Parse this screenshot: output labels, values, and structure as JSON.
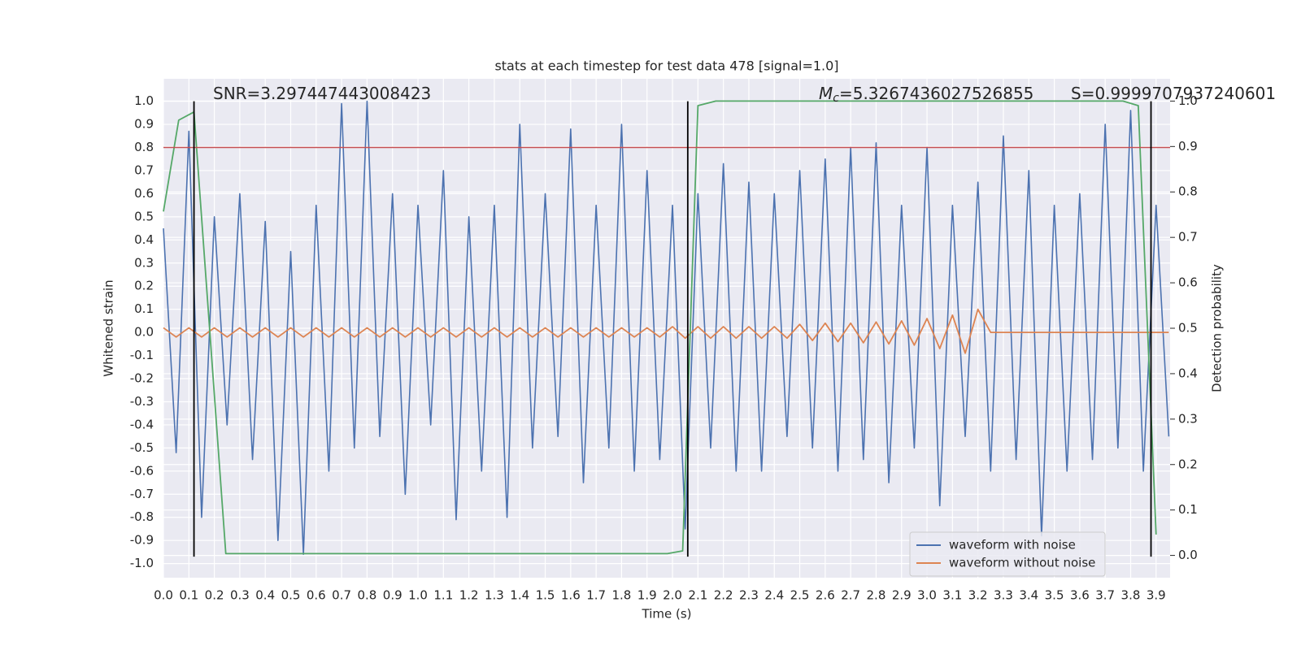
{
  "chart_data": {
    "type": "line",
    "title": "stats at each timestep for test data 478 [signal=1.0]",
    "xlabel": "Time (s)",
    "ylabel": "Whitened strain",
    "y2label": "Detection probability",
    "annotations": [
      {
        "text": "SNR=3.297447443008423"
      },
      {
        "symbol": "M",
        "subscript": "c",
        "text": "=5.3267436027526855"
      },
      {
        "text": "S=0.9999707937240601"
      }
    ],
    "xlim": [
      0,
      3.955
    ],
    "ylim": [
      -1.061,
      1.097
    ],
    "y2lim": [
      -0.049,
      1.049
    ],
    "grid": true,
    "legend": "lower right",
    "xticks": [
      {
        "value": 0,
        "label": "0.0"
      },
      0.1,
      0.2,
      0.3,
      0.4,
      0.5,
      0.6,
      0.7,
      0.8,
      0.9,
      {
        "value": 1,
        "label": "1.0"
      },
      1.1,
      1.2,
      1.3,
      1.4,
      1.5,
      1.6,
      1.7,
      1.8,
      1.9,
      {
        "value": 2,
        "label": "2.0"
      },
      2.1,
      2.2,
      2.3,
      2.4,
      2.5,
      2.6,
      2.7,
      2.8,
      2.9,
      {
        "value": 3,
        "label": "3.0"
      },
      3.1,
      3.2,
      3.3,
      3.4,
      3.5,
      3.6,
      3.7,
      3.8,
      3.9
    ],
    "yticks": [
      {
        "value": 1,
        "label": "1.0"
      },
      0.9,
      0.8,
      0.7,
      0.6,
      0.5,
      0.4,
      0.3,
      0.2,
      0.1,
      {
        "value": 0,
        "label": "0.0"
      },
      -0.1,
      -0.2,
      -0.3,
      -0.4,
      -0.5,
      -0.6,
      -0.7,
      -0.8,
      -0.9,
      {
        "value": -1,
        "label": "-1.0"
      }
    ],
    "y2ticks": [
      {
        "value": 1,
        "label": "1.0"
      },
      0.9,
      0.8,
      0.7,
      0.6,
      0.5,
      0.4,
      0.3,
      0.2,
      0.1,
      {
        "value": 0,
        "label": "0.0"
      }
    ],
    "x": [
      0,
      0.05,
      0.1,
      0.15,
      0.2,
      0.25,
      0.3,
      0.35,
      0.4,
      0.45,
      0.5,
      0.55,
      0.6,
      0.65,
      0.7,
      0.75,
      0.8,
      0.85,
      0.9,
      0.95,
      1,
      1.05,
      1.1,
      1.15,
      1.2,
      1.25,
      1.3,
      1.35,
      1.4,
      1.45,
      1.5,
      1.55,
      1.6,
      1.65,
      1.7,
      1.75,
      1.8,
      1.85,
      1.9,
      1.95,
      2,
      2.05,
      2.1,
      2.15,
      2.2,
      2.25,
      2.3,
      2.35,
      2.4,
      2.45,
      2.5,
      2.55,
      2.6,
      2.65,
      2.7,
      2.75,
      2.8,
      2.85,
      2.9,
      2.95,
      3,
      3.05,
      3.1,
      3.15,
      3.2,
      3.25,
      3.3,
      3.35,
      3.4,
      3.45,
      3.5,
      3.55,
      3.6,
      3.65,
      3.7,
      3.75,
      3.8,
      3.85,
      3.9,
      3.95
    ],
    "series": [
      {
        "name": "waveform with noise",
        "color": "#4c72b0",
        "axis": "y",
        "values": [
          0.45,
          -0.52,
          0.87,
          -0.8,
          0.5,
          -0.4,
          0.6,
          -0.55,
          0.48,
          -0.9,
          0.35,
          -0.96,
          0.55,
          -0.6,
          0.99,
          -0.5,
          1.0,
          -0.45,
          0.6,
          -0.7,
          0.55,
          -0.4,
          0.7,
          -0.81,
          0.5,
          -0.6,
          0.55,
          -0.8,
          0.9,
          -0.5,
          0.6,
          -0.45,
          0.88,
          -0.65,
          0.55,
          -0.5,
          0.9,
          -0.6,
          0.7,
          -0.55,
          0.55,
          -0.85,
          0.6,
          -0.5,
          0.73,
          -0.6,
          0.65,
          -0.6,
          0.6,
          -0.45,
          0.7,
          -0.5,
          0.75,
          -0.6,
          0.8,
          -0.55,
          0.82,
          -0.65,
          0.55,
          -0.5,
          0.8,
          -0.75,
          0.55,
          -0.45,
          0.65,
          -0.6,
          0.85,
          -0.55,
          0.7,
          -0.88,
          0.55,
          -0.6,
          0.6,
          -0.55,
          0.9,
          -0.5,
          0.96,
          -0.6,
          0.55,
          -0.45
        ]
      },
      {
        "name": "waveform without noise",
        "color": "#dd8452",
        "axis": "y",
        "values": [
          0.02,
          -0.02,
          0.02,
          -0.02,
          0.02,
          -0.02,
          0.02,
          -0.02,
          0.02,
          -0.02,
          0.02,
          -0.02,
          0.02,
          -0.02,
          0.02,
          -0.02,
          0.02,
          -0.02,
          0.02,
          -0.02,
          0.02,
          -0.02,
          0.02,
          -0.02,
          0.02,
          -0.02,
          0.02,
          -0.02,
          0.02,
          -0.02,
          0.02,
          -0.02,
          0.02,
          -0.02,
          0.02,
          -0.02,
          0.02,
          -0.02,
          0.02,
          -0.02,
          0.025,
          -0.025,
          0.025,
          -0.025,
          0.025,
          -0.025,
          0.025,
          -0.025,
          0.025,
          -0.025,
          0.035,
          -0.035,
          0.04,
          -0.04,
          0.04,
          -0.045,
          0.045,
          -0.05,
          0.05,
          -0.055,
          0.06,
          -0.07,
          0.075,
          -0.09,
          0.1,
          0,
          0,
          0,
          0,
          0,
          0,
          0,
          0,
          0,
          0,
          0,
          0,
          0,
          0,
          0
        ]
      },
      {
        "color": "#55a868",
        "axis": "y2",
        "x": [
          0,
          0.06,
          0.12,
          0.245,
          1.98,
          2.04,
          2.1,
          2.17,
          3.77,
          3.83,
          3.9
        ],
        "values": [
          0.757,
          0.958,
          0.976,
          0.004,
          0.004,
          0.01,
          0.99,
          1.0,
          1.0,
          0.99,
          0.046
        ]
      }
    ],
    "vlines": {
      "color": "#000000",
      "x": [
        0.12,
        2.06,
        3.88
      ],
      "ymin": -0.97,
      "ymax": 1.0
    },
    "hline": {
      "color": "#c44e52",
      "y": 0.8
    }
  }
}
